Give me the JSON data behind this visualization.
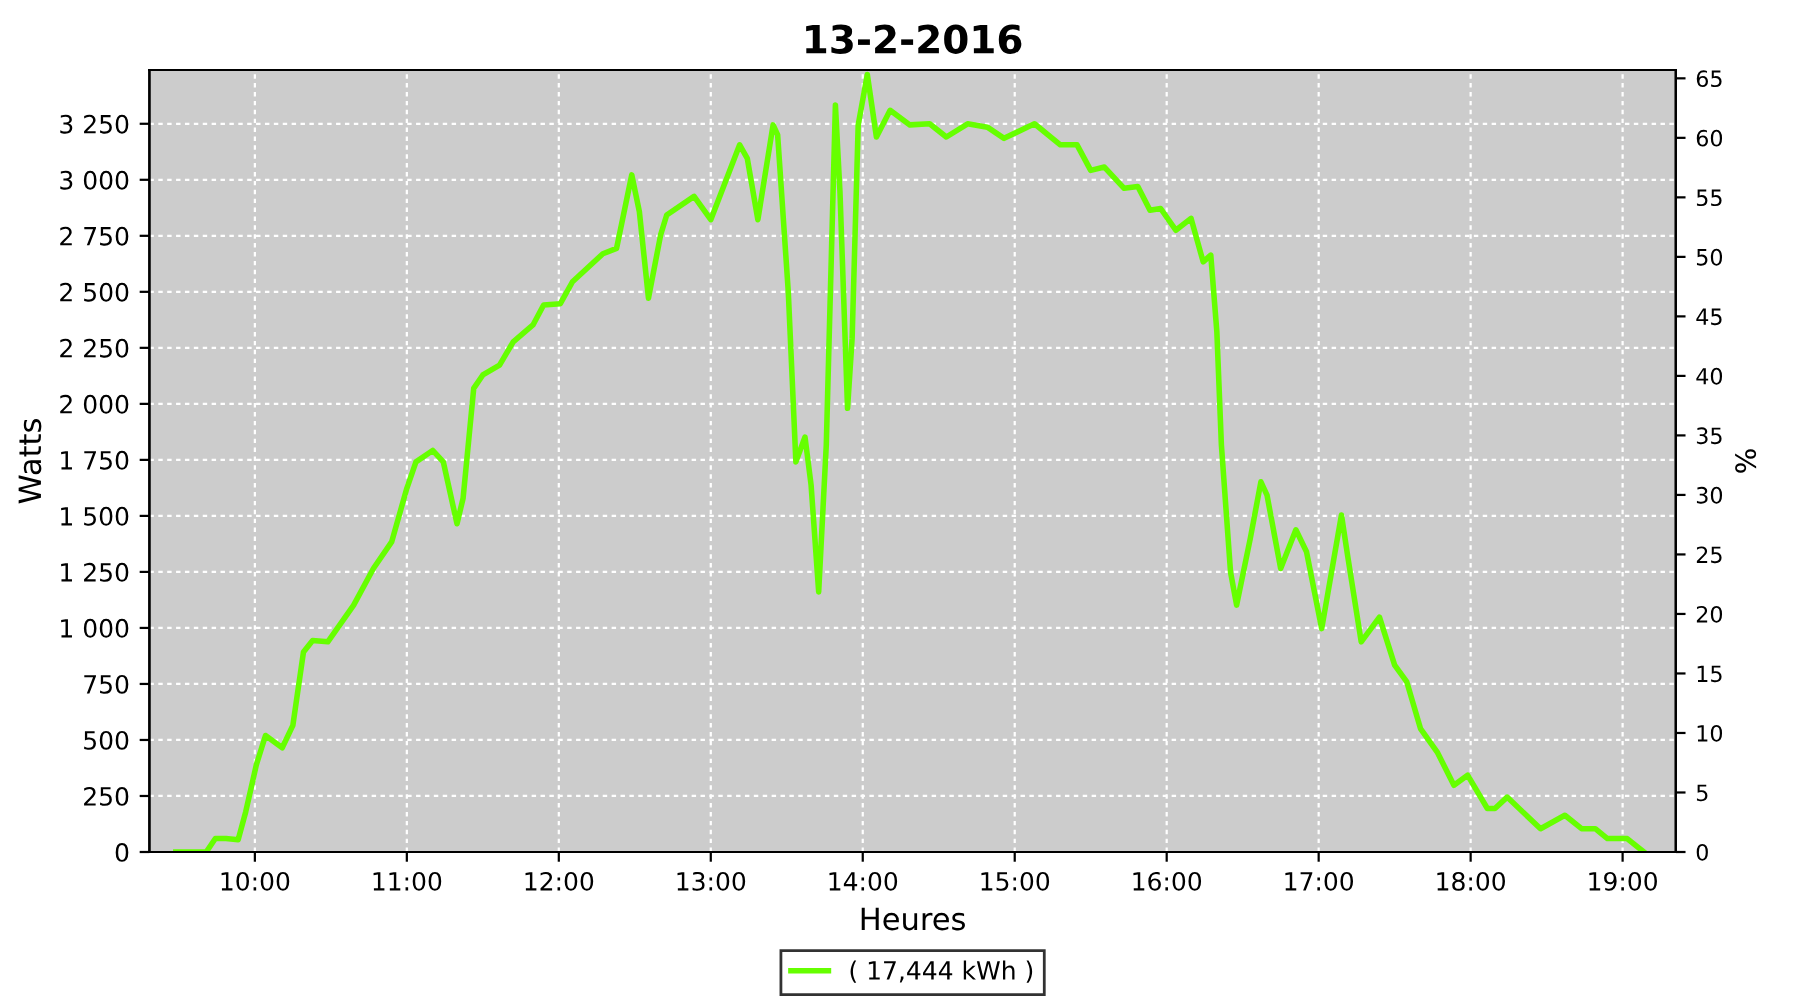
{
  "chart_data": {
    "type": "line",
    "title": "13-2-2016",
    "xlabel": "Heures",
    "ylabel": "Watts",
    "y2label": "%",
    "x": [
      9.48,
      9.68,
      9.74,
      9.81,
      9.89,
      9.94,
      10.01,
      10.07,
      10.18,
      10.25,
      10.32,
      10.38,
      10.48,
      10.65,
      10.78,
      10.9,
      11.0,
      11.06,
      11.17,
      11.24,
      11.33,
      11.37,
      11.44,
      11.5,
      11.61,
      11.7,
      11.83,
      11.9,
      12.01,
      12.09,
      12.29,
      12.38,
      12.48,
      12.53,
      12.59,
      12.67,
      12.71,
      12.89,
      13.0,
      13.19,
      13.24,
      13.31,
      13.41,
      13.44,
      13.51,
      13.56,
      13.62,
      13.66,
      13.71,
      13.76,
      13.82,
      13.85,
      13.9,
      13.93,
      13.97,
      14.03,
      14.09,
      14.18,
      14.31,
      14.44,
      14.55,
      14.69,
      14.82,
      14.93,
      15.13,
      15.3,
      15.41,
      15.5,
      15.59,
      15.72,
      15.81,
      15.89,
      15.96,
      16.06,
      16.16,
      16.24,
      16.29,
      16.33,
      16.36,
      16.42,
      16.46,
      16.55,
      16.62,
      16.66,
      16.75,
      16.85,
      16.92,
      17.02,
      17.15,
      17.19,
      17.28,
      17.4,
      17.5,
      17.58,
      17.67,
      17.78,
      17.89,
      17.98,
      18.11,
      18.16,
      18.24,
      18.46,
      18.62,
      18.73,
      18.82,
      18.9,
      19.03,
      19.14
    ],
    "series": [
      {
        "name": "( 17,444 kWh )",
        "color": "#66ff00",
        "values": [
          0,
          0,
          60,
          60,
          55,
          180,
          390,
          520,
          465,
          565,
          893,
          944,
          938,
          1102,
          1265,
          1384,
          1623,
          1741,
          1792,
          1741,
          1465,
          1578,
          2069,
          2129,
          2173,
          2277,
          2352,
          2441,
          2447,
          2545,
          2670,
          2694,
          3022,
          2858,
          2471,
          2754,
          2843,
          2926,
          2822,
          3156,
          3096,
          2822,
          3245,
          3200,
          2500,
          1741,
          1852,
          1638,
          1161,
          1816,
          3334,
          2947,
          1980,
          2292,
          3245,
          3470,
          3191,
          3310,
          3245,
          3250,
          3191,
          3250,
          3235,
          3185,
          3250,
          3156,
          3156,
          3042,
          3057,
          2962,
          2970,
          2864,
          2872,
          2775,
          2828,
          2634,
          2664,
          2322,
          1816,
          1250,
          1102,
          1399,
          1652,
          1593,
          1265,
          1438,
          1340,
          997,
          1504,
          1325,
          938,
          1048,
          834,
          759,
          551,
          446,
          298,
          343,
          194,
          194,
          245,
          104,
          164,
          104,
          104,
          60,
          60,
          0
        ]
      }
    ],
    "xlim": [
      9.306,
      19.35
    ],
    "xticks": [
      {
        "value": 10,
        "label": "10:00"
      },
      {
        "value": 11,
        "label": "11:00"
      },
      {
        "value": 12,
        "label": "12:00"
      },
      {
        "value": 13,
        "label": "13:00"
      },
      {
        "value": 14,
        "label": "14:00"
      },
      {
        "value": 15,
        "label": "15:00"
      },
      {
        "value": 16,
        "label": "16:00"
      },
      {
        "value": 17,
        "label": "17:00"
      },
      {
        "value": 18,
        "label": "18:00"
      },
      {
        "value": 19,
        "label": "19:00"
      }
    ],
    "ylim": [
      0,
      3490
    ],
    "yticks": [
      0,
      250,
      500,
      750,
      {
        "value": 1000,
        "label": "1 000"
      },
      {
        "value": 1250,
        "label": "1 250"
      },
      {
        "value": 1500,
        "label": "1 500"
      },
      {
        "value": 1750,
        "label": "1 750"
      },
      {
        "value": 2000,
        "label": "2 000"
      },
      {
        "value": 2250,
        "label": "2 250"
      },
      {
        "value": 2500,
        "label": "2 500"
      },
      {
        "value": 2750,
        "label": "2 750"
      },
      {
        "value": 3000,
        "label": "3 000"
      },
      {
        "value": 3250,
        "label": "3 250"
      }
    ],
    "y2lim": [
      0,
      65.7
    ],
    "y2ticks": [
      0,
      5,
      10,
      15,
      20,
      25,
      30,
      35,
      40,
      45,
      50,
      55,
      60,
      65
    ],
    "grid": true,
    "legend": "bottom",
    "marker": "none",
    "line_style": "solid"
  }
}
